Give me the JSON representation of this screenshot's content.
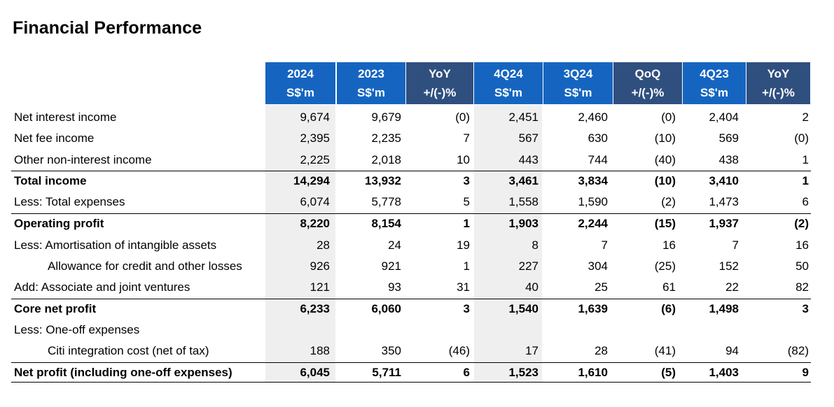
{
  "title": "Financial Performance",
  "columns": [
    {
      "line1": "2024",
      "line2": "S$'m"
    },
    {
      "line1": "2023",
      "line2": "S$'m"
    },
    {
      "line1": "YoY",
      "line2": "+/(-)%"
    },
    {
      "line1": "4Q24",
      "line2": "S$'m"
    },
    {
      "line1": "3Q24",
      "line2": "S$'m"
    },
    {
      "line1": "QoQ",
      "line2": "+/(-)%"
    },
    {
      "line1": "4Q23",
      "line2": "S$'m"
    },
    {
      "line1": "YoY",
      "line2": "+/(-)%"
    }
  ],
  "rows": [
    {
      "label": "Net interest income",
      "values": [
        "9,674",
        "9,679",
        "(0)",
        "2,451",
        "2,460",
        "(0)",
        "2,404",
        "2"
      ]
    },
    {
      "label": "Net fee income",
      "values": [
        "2,395",
        "2,235",
        "7",
        "567",
        "630",
        "(10)",
        "569",
        "(0)"
      ]
    },
    {
      "label": "Other non-interest income",
      "values": [
        "2,225",
        "2,018",
        "10",
        "443",
        "744",
        "(40)",
        "438",
        "1"
      ]
    },
    {
      "label": "Total income",
      "values": [
        "14,294",
        "13,932",
        "3",
        "3,461",
        "3,834",
        "(10)",
        "3,410",
        "1"
      ]
    },
    {
      "label": "Less: Total expenses",
      "values": [
        "6,074",
        "5,778",
        "5",
        "1,558",
        "1,590",
        "(2)",
        "1,473",
        "6"
      ]
    },
    {
      "label": "Operating profit",
      "values": [
        "8,220",
        "8,154",
        "1",
        "1,903",
        "2,244",
        "(15)",
        "1,937",
        "(2)"
      ]
    },
    {
      "label": "Less: Amortisation of intangible assets",
      "values": [
        "28",
        "24",
        "19",
        "8",
        "7",
        "16",
        "7",
        "16"
      ]
    },
    {
      "label": "Allowance for credit and other losses",
      "values": [
        "926",
        "921",
        "1",
        "227",
        "304",
        "(25)",
        "152",
        "50"
      ]
    },
    {
      "label": "Add:  Associate and joint ventures",
      "values": [
        "121",
        "93",
        "31",
        "40",
        "25",
        "61",
        "22",
        "82"
      ]
    },
    {
      "label": "Core net profit",
      "values": [
        "6,233",
        "6,060",
        "3",
        "1,540",
        "1,639",
        "(6)",
        "1,498",
        "3"
      ]
    },
    {
      "label": "Less: One-off expenses",
      "values": [
        "",
        "",
        "",
        "",
        "",
        "",
        "",
        ""
      ]
    },
    {
      "label": "Citi integration cost (net of tax)",
      "values": [
        "188",
        "350",
        "(46)",
        "17",
        "28",
        "(41)",
        "94",
        "(82)"
      ]
    },
    {
      "label": "Net profit (including one-off expenses)",
      "values": [
        "6,045",
        "5,711",
        "6",
        "1,523",
        "1,610",
        "(5)",
        "1,403",
        "9"
      ]
    }
  ],
  "colors": {
    "header_blue": "#1565c0",
    "header_dark": "#2f4f7f",
    "shade": "#efefef"
  }
}
